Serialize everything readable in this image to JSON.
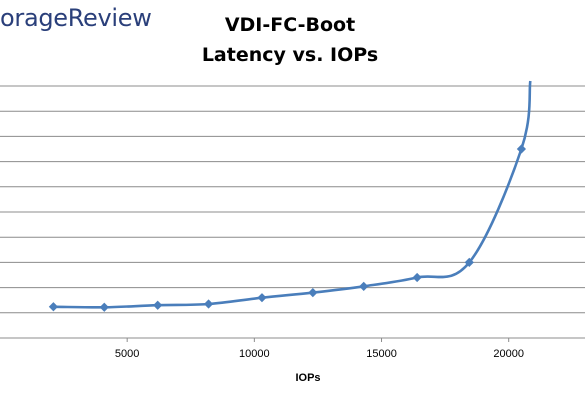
{
  "brand": {
    "text": "orageReview"
  },
  "chart_data": {
    "type": "line",
    "title": "VDI-FC-Boot",
    "subtitle": "Latency vs. IOPs",
    "xlabel": "IOPs",
    "ylabel": "",
    "xlim": [
      0,
      23000
    ],
    "ylim": [
      0,
      10
    ],
    "x_ticks": [
      5000,
      10000,
      15000,
      20000
    ],
    "x_tick_labels": [
      "5000",
      "10000",
      "15000",
      "20000"
    ],
    "y_gridlines": [
      1,
      2,
      3,
      4,
      5,
      6,
      7,
      8,
      9,
      10
    ],
    "grid": true,
    "legend": "none",
    "series_color": "#4a7ebb",
    "series": [
      {
        "x": [
          2100,
          4100,
          6200,
          8200,
          10300,
          12300,
          14300,
          16400,
          18450,
          20500
        ],
        "y": [
          1.24,
          1.22,
          1.3,
          1.35,
          1.6,
          1.8,
          2.05,
          2.4,
          3.0,
          7.5
        ],
        "curve_end": [
          20850,
          10.2
        ]
      }
    ]
  }
}
